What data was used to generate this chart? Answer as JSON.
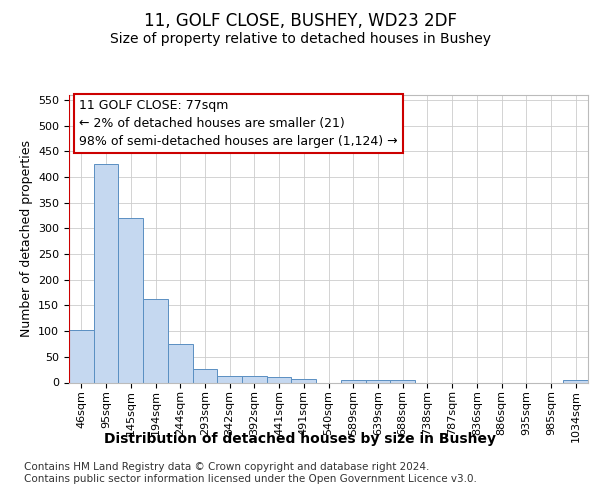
{
  "title_line1": "11, GOLF CLOSE, BUSHEY, WD23 2DF",
  "title_line2": "Size of property relative to detached houses in Bushey",
  "xlabel": "Distribution of detached houses by size in Bushey",
  "ylabel": "Number of detached properties",
  "footnote": "Contains HM Land Registry data © Crown copyright and database right 2024.\nContains public sector information licensed under the Open Government Licence v3.0.",
  "categories": [
    "46sqm",
    "95sqm",
    "145sqm",
    "194sqm",
    "244sqm",
    "293sqm",
    "342sqm",
    "392sqm",
    "441sqm",
    "491sqm",
    "540sqm",
    "589sqm",
    "639sqm",
    "688sqm",
    "738sqm",
    "787sqm",
    "836sqm",
    "886sqm",
    "935sqm",
    "985sqm",
    "1034sqm"
  ],
  "values": [
    103,
    425,
    320,
    163,
    75,
    27,
    12,
    12,
    10,
    7,
    0,
    5,
    5,
    5,
    0,
    0,
    0,
    0,
    0,
    0,
    5
  ],
  "bar_color": "#c5d8f0",
  "bar_edge_color": "#5a8fc2",
  "highlight_line_color": "#cc0000",
  "annotation_text": "11 GOLF CLOSE: 77sqm\n← 2% of detached houses are smaller (21)\n98% of semi-detached houses are larger (1,124) →",
  "annotation_box_color": "#ffffff",
  "annotation_box_edge_color": "#cc0000",
  "ylim": [
    0,
    560
  ],
  "yticks": [
    0,
    50,
    100,
    150,
    200,
    250,
    300,
    350,
    400,
    450,
    500,
    550
  ],
  "bg_color": "#ffffff",
  "grid_color": "#cccccc",
  "title1_fontsize": 12,
  "title2_fontsize": 10,
  "xlabel_fontsize": 10,
  "ylabel_fontsize": 9,
  "tick_fontsize": 8,
  "annotation_fontsize": 9,
  "footnote_fontsize": 7.5
}
